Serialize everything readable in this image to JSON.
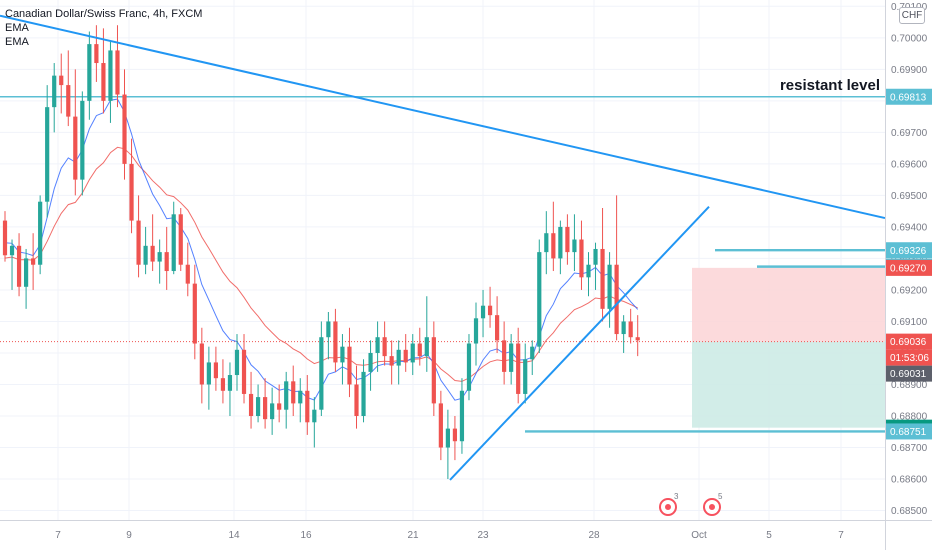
{
  "chart_data": {
    "type": "candlestick",
    "title": "Canadian Dollar/Swiss Franc, 4h, FXCM",
    "indicators": [
      "EMA",
      "EMA"
    ],
    "currency_badge": "CHF",
    "x_tick_labels": [
      "7",
      "9",
      "14",
      "16",
      "21",
      "23",
      "28",
      "Oct",
      "5",
      "7"
    ],
    "y_ticks": [
      "0.70100",
      "0.70000",
      "0.69900",
      "0.69800",
      "0.69700",
      "0.69600",
      "0.69500",
      "0.69400",
      "0.69300",
      "0.69200",
      "0.69100",
      "0.69000",
      "0.68900",
      "0.68800",
      "0.68700",
      "0.68600",
      "0.68500"
    ],
    "ylim": [
      0.6847,
      0.7012
    ],
    "price_labels": [
      {
        "value": "0.69813",
        "style": "line"
      },
      {
        "value": "0.69326",
        "style": "line"
      },
      {
        "value": "0.69274",
        "style": "line"
      },
      {
        "value": "0.69270",
        "style": "stop"
      },
      {
        "value": "0.69036",
        "style": "last"
      },
      {
        "value": "01:53:06",
        "style": "countdown"
      },
      {
        "value": "0.69031",
        "style": "gray"
      },
      {
        "value": "0.68763",
        "style": "target"
      },
      {
        "value": "0.68751",
        "style": "line"
      }
    ],
    "annotations": {
      "resistance_text": "resistant level",
      "resistance_level": 0.69813,
      "levels": [
        0.69326,
        0.69274,
        0.68751
      ],
      "trendline_down": {
        "from_price": 0.7007,
        "to_price": 0.69428
      },
      "trendline_up": {
        "from_price": 0.68597,
        "to_price": 0.69464
      },
      "short_position": {
        "entry": 0.69036,
        "stop": 0.6927,
        "target": 0.68763
      }
    },
    "event_badges": [
      "3",
      "5"
    ],
    "candles": [
      {
        "o": 0.6942,
        "h": 0.6945,
        "l": 0.6929,
        "c": 0.6931
      },
      {
        "o": 0.6931,
        "h": 0.6936,
        "l": 0.692,
        "c": 0.6934
      },
      {
        "o": 0.6934,
        "h": 0.6938,
        "l": 0.6918,
        "c": 0.6921
      },
      {
        "o": 0.6921,
        "h": 0.6933,
        "l": 0.6914,
        "c": 0.693
      },
      {
        "o": 0.693,
        "h": 0.6938,
        "l": 0.692,
        "c": 0.6928
      },
      {
        "o": 0.6928,
        "h": 0.695,
        "l": 0.6925,
        "c": 0.6948
      },
      {
        "o": 0.6948,
        "h": 0.6985,
        "l": 0.6943,
        "c": 0.6978
      },
      {
        "o": 0.6978,
        "h": 0.6992,
        "l": 0.697,
        "c": 0.6988
      },
      {
        "o": 0.6988,
        "h": 0.6995,
        "l": 0.6976,
        "c": 0.6985
      },
      {
        "o": 0.6985,
        "h": 0.6996,
        "l": 0.6972,
        "c": 0.6975
      },
      {
        "o": 0.6975,
        "h": 0.699,
        "l": 0.695,
        "c": 0.6955
      },
      {
        "o": 0.6955,
        "h": 0.6983,
        "l": 0.695,
        "c": 0.698
      },
      {
        "o": 0.698,
        "h": 0.7002,
        "l": 0.6974,
        "c": 0.6998
      },
      {
        "o": 0.6998,
        "h": 0.7004,
        "l": 0.6986,
        "c": 0.6992
      },
      {
        "o": 0.6992,
        "h": 0.7003,
        "l": 0.6976,
        "c": 0.698
      },
      {
        "o": 0.698,
        "h": 0.6999,
        "l": 0.6973,
        "c": 0.6996
      },
      {
        "o": 0.6996,
        "h": 0.7004,
        "l": 0.6978,
        "c": 0.6982
      },
      {
        "o": 0.6982,
        "h": 0.699,
        "l": 0.6955,
        "c": 0.696
      },
      {
        "o": 0.696,
        "h": 0.6968,
        "l": 0.6938,
        "c": 0.6942
      },
      {
        "o": 0.6942,
        "h": 0.695,
        "l": 0.6924,
        "c": 0.6928
      },
      {
        "o": 0.6928,
        "h": 0.694,
        "l": 0.6925,
        "c": 0.6934
      },
      {
        "o": 0.6934,
        "h": 0.6944,
        "l": 0.6926,
        "c": 0.6929
      },
      {
        "o": 0.6929,
        "h": 0.6936,
        "l": 0.6922,
        "c": 0.6932
      },
      {
        "o": 0.6932,
        "h": 0.694,
        "l": 0.692,
        "c": 0.6926
      },
      {
        "o": 0.6926,
        "h": 0.6948,
        "l": 0.6925,
        "c": 0.6944
      },
      {
        "o": 0.6944,
        "h": 0.6946,
        "l": 0.6926,
        "c": 0.6928
      },
      {
        "o": 0.6928,
        "h": 0.6935,
        "l": 0.6918,
        "c": 0.6922
      },
      {
        "o": 0.6922,
        "h": 0.6928,
        "l": 0.6898,
        "c": 0.6903
      },
      {
        "o": 0.6903,
        "h": 0.6908,
        "l": 0.6884,
        "c": 0.689
      },
      {
        "o": 0.689,
        "h": 0.6902,
        "l": 0.6882,
        "c": 0.6897
      },
      {
        "o": 0.6897,
        "h": 0.6902,
        "l": 0.6888,
        "c": 0.6892
      },
      {
        "o": 0.6892,
        "h": 0.6898,
        "l": 0.6884,
        "c": 0.6888
      },
      {
        "o": 0.6888,
        "h": 0.6897,
        "l": 0.688,
        "c": 0.6893
      },
      {
        "o": 0.6893,
        "h": 0.6906,
        "l": 0.6888,
        "c": 0.6901
      },
      {
        "o": 0.6901,
        "h": 0.6906,
        "l": 0.6884,
        "c": 0.6887
      },
      {
        "o": 0.6887,
        "h": 0.6894,
        "l": 0.6876,
        "c": 0.688
      },
      {
        "o": 0.688,
        "h": 0.689,
        "l": 0.6878,
        "c": 0.6886
      },
      {
        "o": 0.6886,
        "h": 0.6892,
        "l": 0.6876,
        "c": 0.6879
      },
      {
        "o": 0.6879,
        "h": 0.6889,
        "l": 0.6874,
        "c": 0.6884
      },
      {
        "o": 0.6884,
        "h": 0.689,
        "l": 0.6878,
        "c": 0.6882
      },
      {
        "o": 0.6882,
        "h": 0.6894,
        "l": 0.6876,
        "c": 0.6891
      },
      {
        "o": 0.6891,
        "h": 0.6896,
        "l": 0.688,
        "c": 0.6884
      },
      {
        "o": 0.6884,
        "h": 0.6892,
        "l": 0.6878,
        "c": 0.6888
      },
      {
        "o": 0.6888,
        "h": 0.6893,
        "l": 0.6874,
        "c": 0.6878
      },
      {
        "o": 0.6878,
        "h": 0.6886,
        "l": 0.687,
        "c": 0.6882
      },
      {
        "o": 0.6882,
        "h": 0.691,
        "l": 0.688,
        "c": 0.6905
      },
      {
        "o": 0.6905,
        "h": 0.6913,
        "l": 0.6898,
        "c": 0.691
      },
      {
        "o": 0.691,
        "h": 0.6914,
        "l": 0.6894,
        "c": 0.6897
      },
      {
        "o": 0.6897,
        "h": 0.6906,
        "l": 0.689,
        "c": 0.6902
      },
      {
        "o": 0.6902,
        "h": 0.6908,
        "l": 0.6886,
        "c": 0.689
      },
      {
        "o": 0.689,
        "h": 0.6896,
        "l": 0.6876,
        "c": 0.688
      },
      {
        "o": 0.688,
        "h": 0.6898,
        "l": 0.6878,
        "c": 0.6894
      },
      {
        "o": 0.6894,
        "h": 0.6904,
        "l": 0.6888,
        "c": 0.69
      },
      {
        "o": 0.69,
        "h": 0.691,
        "l": 0.6894,
        "c": 0.6905
      },
      {
        "o": 0.6905,
        "h": 0.691,
        "l": 0.6896,
        "c": 0.6899
      },
      {
        "o": 0.6899,
        "h": 0.6904,
        "l": 0.689,
        "c": 0.6896
      },
      {
        "o": 0.6896,
        "h": 0.6904,
        "l": 0.689,
        "c": 0.6901
      },
      {
        "o": 0.6901,
        "h": 0.6906,
        "l": 0.6894,
        "c": 0.6897
      },
      {
        "o": 0.6897,
        "h": 0.6906,
        "l": 0.6893,
        "c": 0.6903
      },
      {
        "o": 0.6903,
        "h": 0.6908,
        "l": 0.6896,
        "c": 0.6899
      },
      {
        "o": 0.6899,
        "h": 0.6918,
        "l": 0.6894,
        "c": 0.6905
      },
      {
        "o": 0.6905,
        "h": 0.691,
        "l": 0.688,
        "c": 0.6884
      },
      {
        "o": 0.6884,
        "h": 0.6888,
        "l": 0.6866,
        "c": 0.687
      },
      {
        "o": 0.687,
        "h": 0.6882,
        "l": 0.686,
        "c": 0.6876
      },
      {
        "o": 0.6876,
        "h": 0.688,
        "l": 0.6866,
        "c": 0.6872
      },
      {
        "o": 0.6872,
        "h": 0.6892,
        "l": 0.6868,
        "c": 0.6888
      },
      {
        "o": 0.6888,
        "h": 0.6906,
        "l": 0.6885,
        "c": 0.6903
      },
      {
        "o": 0.6903,
        "h": 0.6916,
        "l": 0.6896,
        "c": 0.6911
      },
      {
        "o": 0.6911,
        "h": 0.692,
        "l": 0.6905,
        "c": 0.6915
      },
      {
        "o": 0.6915,
        "h": 0.6921,
        "l": 0.6908,
        "c": 0.6912
      },
      {
        "o": 0.6912,
        "h": 0.6918,
        "l": 0.69,
        "c": 0.6904
      },
      {
        "o": 0.6904,
        "h": 0.691,
        "l": 0.689,
        "c": 0.6894
      },
      {
        "o": 0.6894,
        "h": 0.6906,
        "l": 0.689,
        "c": 0.6903
      },
      {
        "o": 0.6903,
        "h": 0.6908,
        "l": 0.6884,
        "c": 0.6887
      },
      {
        "o": 0.6887,
        "h": 0.6903,
        "l": 0.6884,
        "c": 0.6898
      },
      {
        "o": 0.6898,
        "h": 0.6904,
        "l": 0.6893,
        "c": 0.6902
      },
      {
        "o": 0.6902,
        "h": 0.6936,
        "l": 0.69,
        "c": 0.6932
      },
      {
        "o": 0.6932,
        "h": 0.6945,
        "l": 0.6925,
        "c": 0.6938
      },
      {
        "o": 0.6938,
        "h": 0.6948,
        "l": 0.6926,
        "c": 0.693
      },
      {
        "o": 0.693,
        "h": 0.6942,
        "l": 0.6925,
        "c": 0.694
      },
      {
        "o": 0.694,
        "h": 0.6944,
        "l": 0.6928,
        "c": 0.6932
      },
      {
        "o": 0.6932,
        "h": 0.6944,
        "l": 0.6926,
        "c": 0.6936
      },
      {
        "o": 0.6936,
        "h": 0.6942,
        "l": 0.692,
        "c": 0.6924
      },
      {
        "o": 0.6924,
        "h": 0.6932,
        "l": 0.6918,
        "c": 0.6928
      },
      {
        "o": 0.6928,
        "h": 0.6935,
        "l": 0.692,
        "c": 0.6933
      },
      {
        "o": 0.6933,
        "h": 0.6946,
        "l": 0.691,
        "c": 0.6914
      },
      {
        "o": 0.6914,
        "h": 0.6932,
        "l": 0.6908,
        "c": 0.6928
      },
      {
        "o": 0.6928,
        "h": 0.695,
        "l": 0.6904,
        "c": 0.6906
      },
      {
        "o": 0.6906,
        "h": 0.6912,
        "l": 0.69,
        "c": 0.691
      },
      {
        "o": 0.691,
        "h": 0.6914,
        "l": 0.6903,
        "c": 0.6905
      },
      {
        "o": 0.6905,
        "h": 0.6912,
        "l": 0.6899,
        "c": 0.6904
      }
    ]
  }
}
